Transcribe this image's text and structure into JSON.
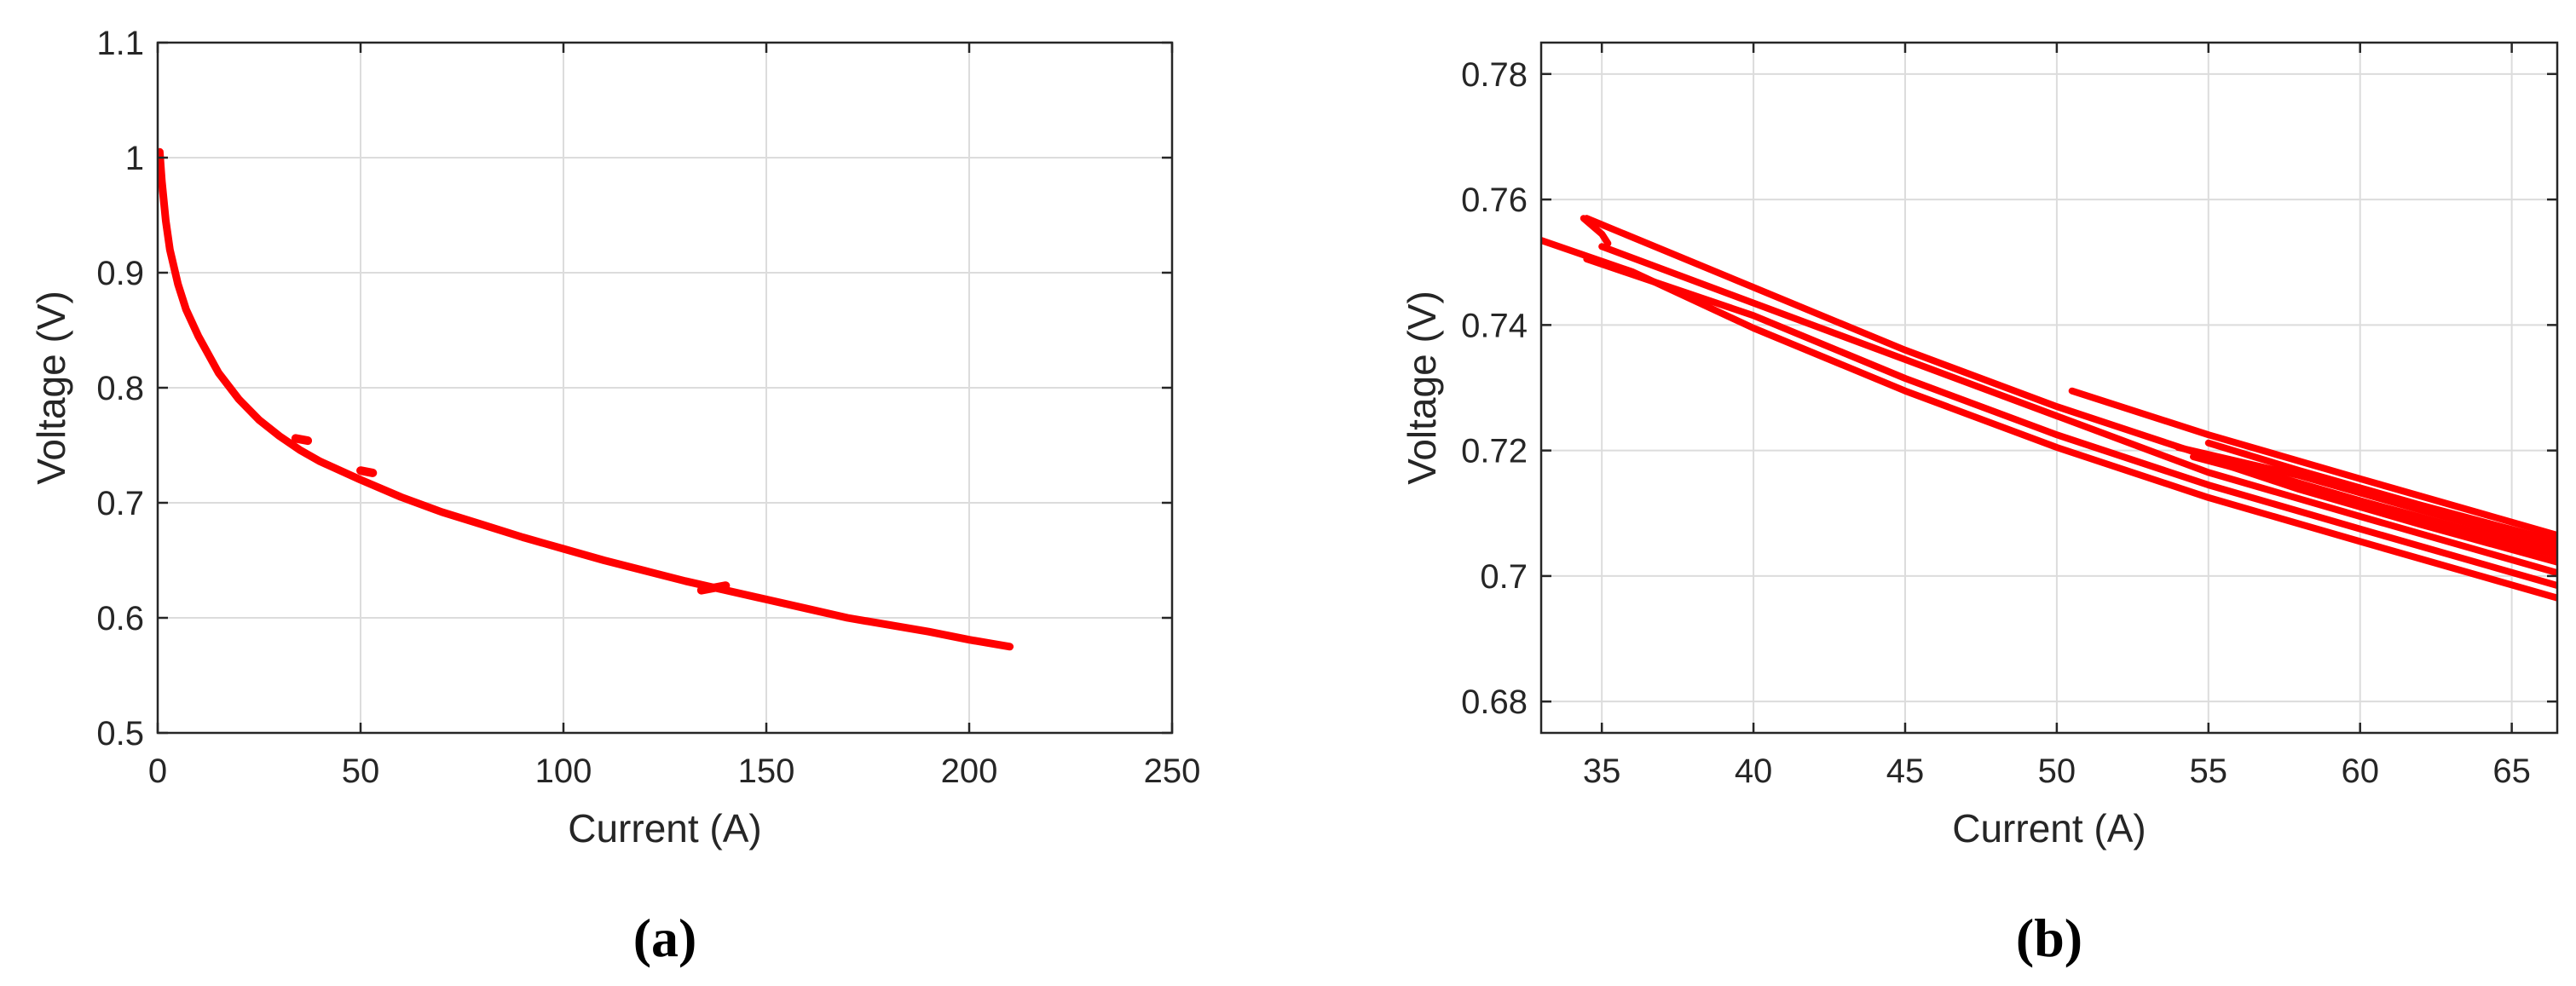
{
  "chart_data": [
    {
      "panel_label": "(a)",
      "type": "line",
      "xlabel": "Current (A)",
      "ylabel": "Voltage (V)",
      "xlim": [
        0,
        250
      ],
      "ylim": [
        0.5,
        1.1
      ],
      "xticks": [
        "0",
        "50",
        "100",
        "150",
        "200",
        "250"
      ],
      "yticks": [
        "0.5",
        "0.6",
        "0.7",
        "0.8",
        "0.9",
        "1",
        "1.1"
      ],
      "grid": true,
      "color": "#ff0000",
      "series": [
        {
          "x": [
            0.5,
            1,
            2,
            3,
            5,
            7,
            10,
            15,
            20,
            25,
            30,
            35,
            40,
            50,
            60,
            70,
            80,
            90,
            100,
            110,
            120,
            130,
            140,
            150,
            160,
            170,
            180,
            190,
            200,
            210
          ],
          "y": [
            1.005,
            0.98,
            0.945,
            0.92,
            0.89,
            0.868,
            0.845,
            0.813,
            0.79,
            0.772,
            0.758,
            0.746,
            0.736,
            0.72,
            0.705,
            0.692,
            0.681,
            0.67,
            0.66,
            0.65,
            0.641,
            0.632,
            0.624,
            0.616,
            0.608,
            0.6,
            0.594,
            0.588,
            0.581,
            0.575
          ]
        },
        {
          "x": [
            34,
            37
          ],
          "y": [
            0.756,
            0.754
          ]
        },
        {
          "x": [
            50,
            53
          ],
          "y": [
            0.728,
            0.726
          ]
        },
        {
          "x": [
            134,
            140
          ],
          "y": [
            0.624,
            0.628
          ]
        }
      ]
    },
    {
      "panel_label": "(b)",
      "type": "line",
      "xlabel": "Current (A)",
      "ylabel": "Voltage (V)",
      "xlim": [
        33,
        66.5
      ],
      "ylim": [
        0.675,
        0.785
      ],
      "xticks": [
        "35",
        "40",
        "45",
        "50",
        "55",
        "60",
        "65"
      ],
      "yticks": [
        "0.68",
        "0.7",
        "0.72",
        "0.74",
        "0.76",
        "0.78"
      ],
      "grid": true,
      "color": "#ff0000",
      "series": [
        {
          "x": [
            33,
            36,
            40,
            45,
            50,
            55,
            60,
            66.5
          ],
          "y": [
            0.7535,
            0.7485,
            0.7395,
            0.7295,
            0.7205,
            0.7125,
            0.7055,
            0.6965
          ]
        },
        {
          "x": [
            34.5,
            40,
            45,
            50,
            55,
            60,
            66.5
          ],
          "y": [
            0.7505,
            0.7415,
            0.7315,
            0.7225,
            0.7145,
            0.7075,
            0.6985
          ]
        },
        {
          "x": [
            35,
            40,
            45,
            50,
            55,
            60,
            66.5
          ],
          "y": [
            0.7525,
            0.7435,
            0.7345,
            0.7255,
            0.7165,
            0.7095,
            0.7005
          ]
        },
        {
          "x": [
            34.5,
            40,
            45,
            50,
            55,
            60,
            66.5
          ],
          "y": [
            0.757,
            0.746,
            0.736,
            0.727,
            0.719,
            0.712,
            0.7035
          ]
        },
        {
          "x": [
            34.4,
            35,
            35.2
          ],
          "y": [
            0.757,
            0.7545,
            0.753
          ]
        },
        {
          "x": [
            50.5,
            55,
            60,
            66.5
          ],
          "y": [
            0.7295,
            0.7225,
            0.7155,
            0.7065
          ]
        },
        {
          "x": [
            54,
            58,
            62,
            66.5
          ],
          "y": [
            0.7205,
            0.716,
            0.7105,
            0.7045
          ]
        },
        {
          "x": [
            54.5,
            58,
            62,
            66.5
          ],
          "y": [
            0.719,
            0.7145,
            0.7092,
            0.7033
          ]
        },
        {
          "x": [
            55,
            58,
            62,
            66.5
          ],
          "y": [
            0.7212,
            0.7168,
            0.7113,
            0.7055
          ]
        },
        {
          "x": [
            55.5,
            58,
            62,
            66.5
          ],
          "y": [
            0.7178,
            0.7138,
            0.7082,
            0.7022
          ]
        }
      ]
    }
  ]
}
